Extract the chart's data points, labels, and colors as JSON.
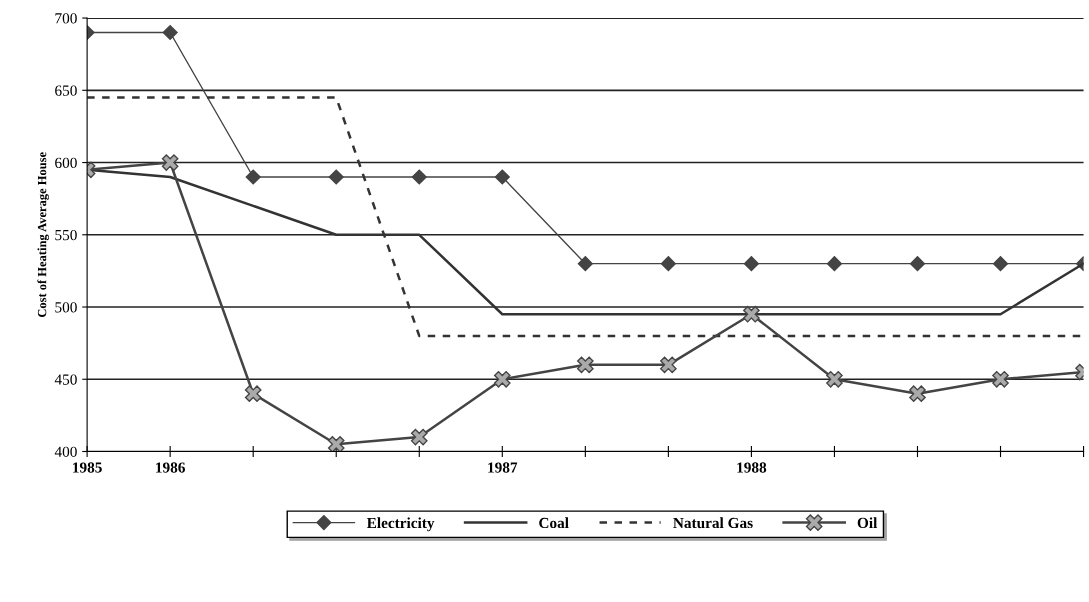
{
  "chart_data": {
    "type": "line",
    "ylabel": "Cost of Heating Average House",
    "categories": [
      "1985",
      "1986",
      null,
      null,
      null,
      "1987",
      null,
      null,
      "1988",
      null,
      null,
      null,
      null
    ],
    "series": [
      {
        "name": "Electricity",
        "color": "#444444",
        "marker": "diamond",
        "line_style": "solid",
        "values": [
          690,
          690,
          590,
          590,
          590,
          590,
          530,
          530,
          530,
          530,
          530,
          530,
          530
        ]
      },
      {
        "name": "Coal",
        "color": "#333333",
        "marker": "none",
        "line_style": "solid",
        "values": [
          595,
          590,
          570,
          550,
          550,
          495,
          495,
          495,
          495,
          495,
          495,
          495,
          530
        ]
      },
      {
        "name": "Natural Gas",
        "color": "#333333",
        "marker": "none",
        "line_style": "dashed",
        "values": [
          645,
          645,
          645,
          645,
          480,
          480,
          480,
          480,
          480,
          480,
          480,
          480,
          480
        ]
      },
      {
        "name": "Oil",
        "color": "#444444",
        "marker": "cross",
        "line_style": "solid",
        "values": [
          595,
          600,
          440,
          405,
          410,
          450,
          460,
          460,
          495,
          450,
          440,
          450,
          455
        ]
      }
    ],
    "ylim": [
      400,
      700
    ],
    "yticks": [
      400,
      450,
      500,
      550,
      600,
      650,
      700
    ],
    "grid": "y",
    "legend": "bottom"
  }
}
